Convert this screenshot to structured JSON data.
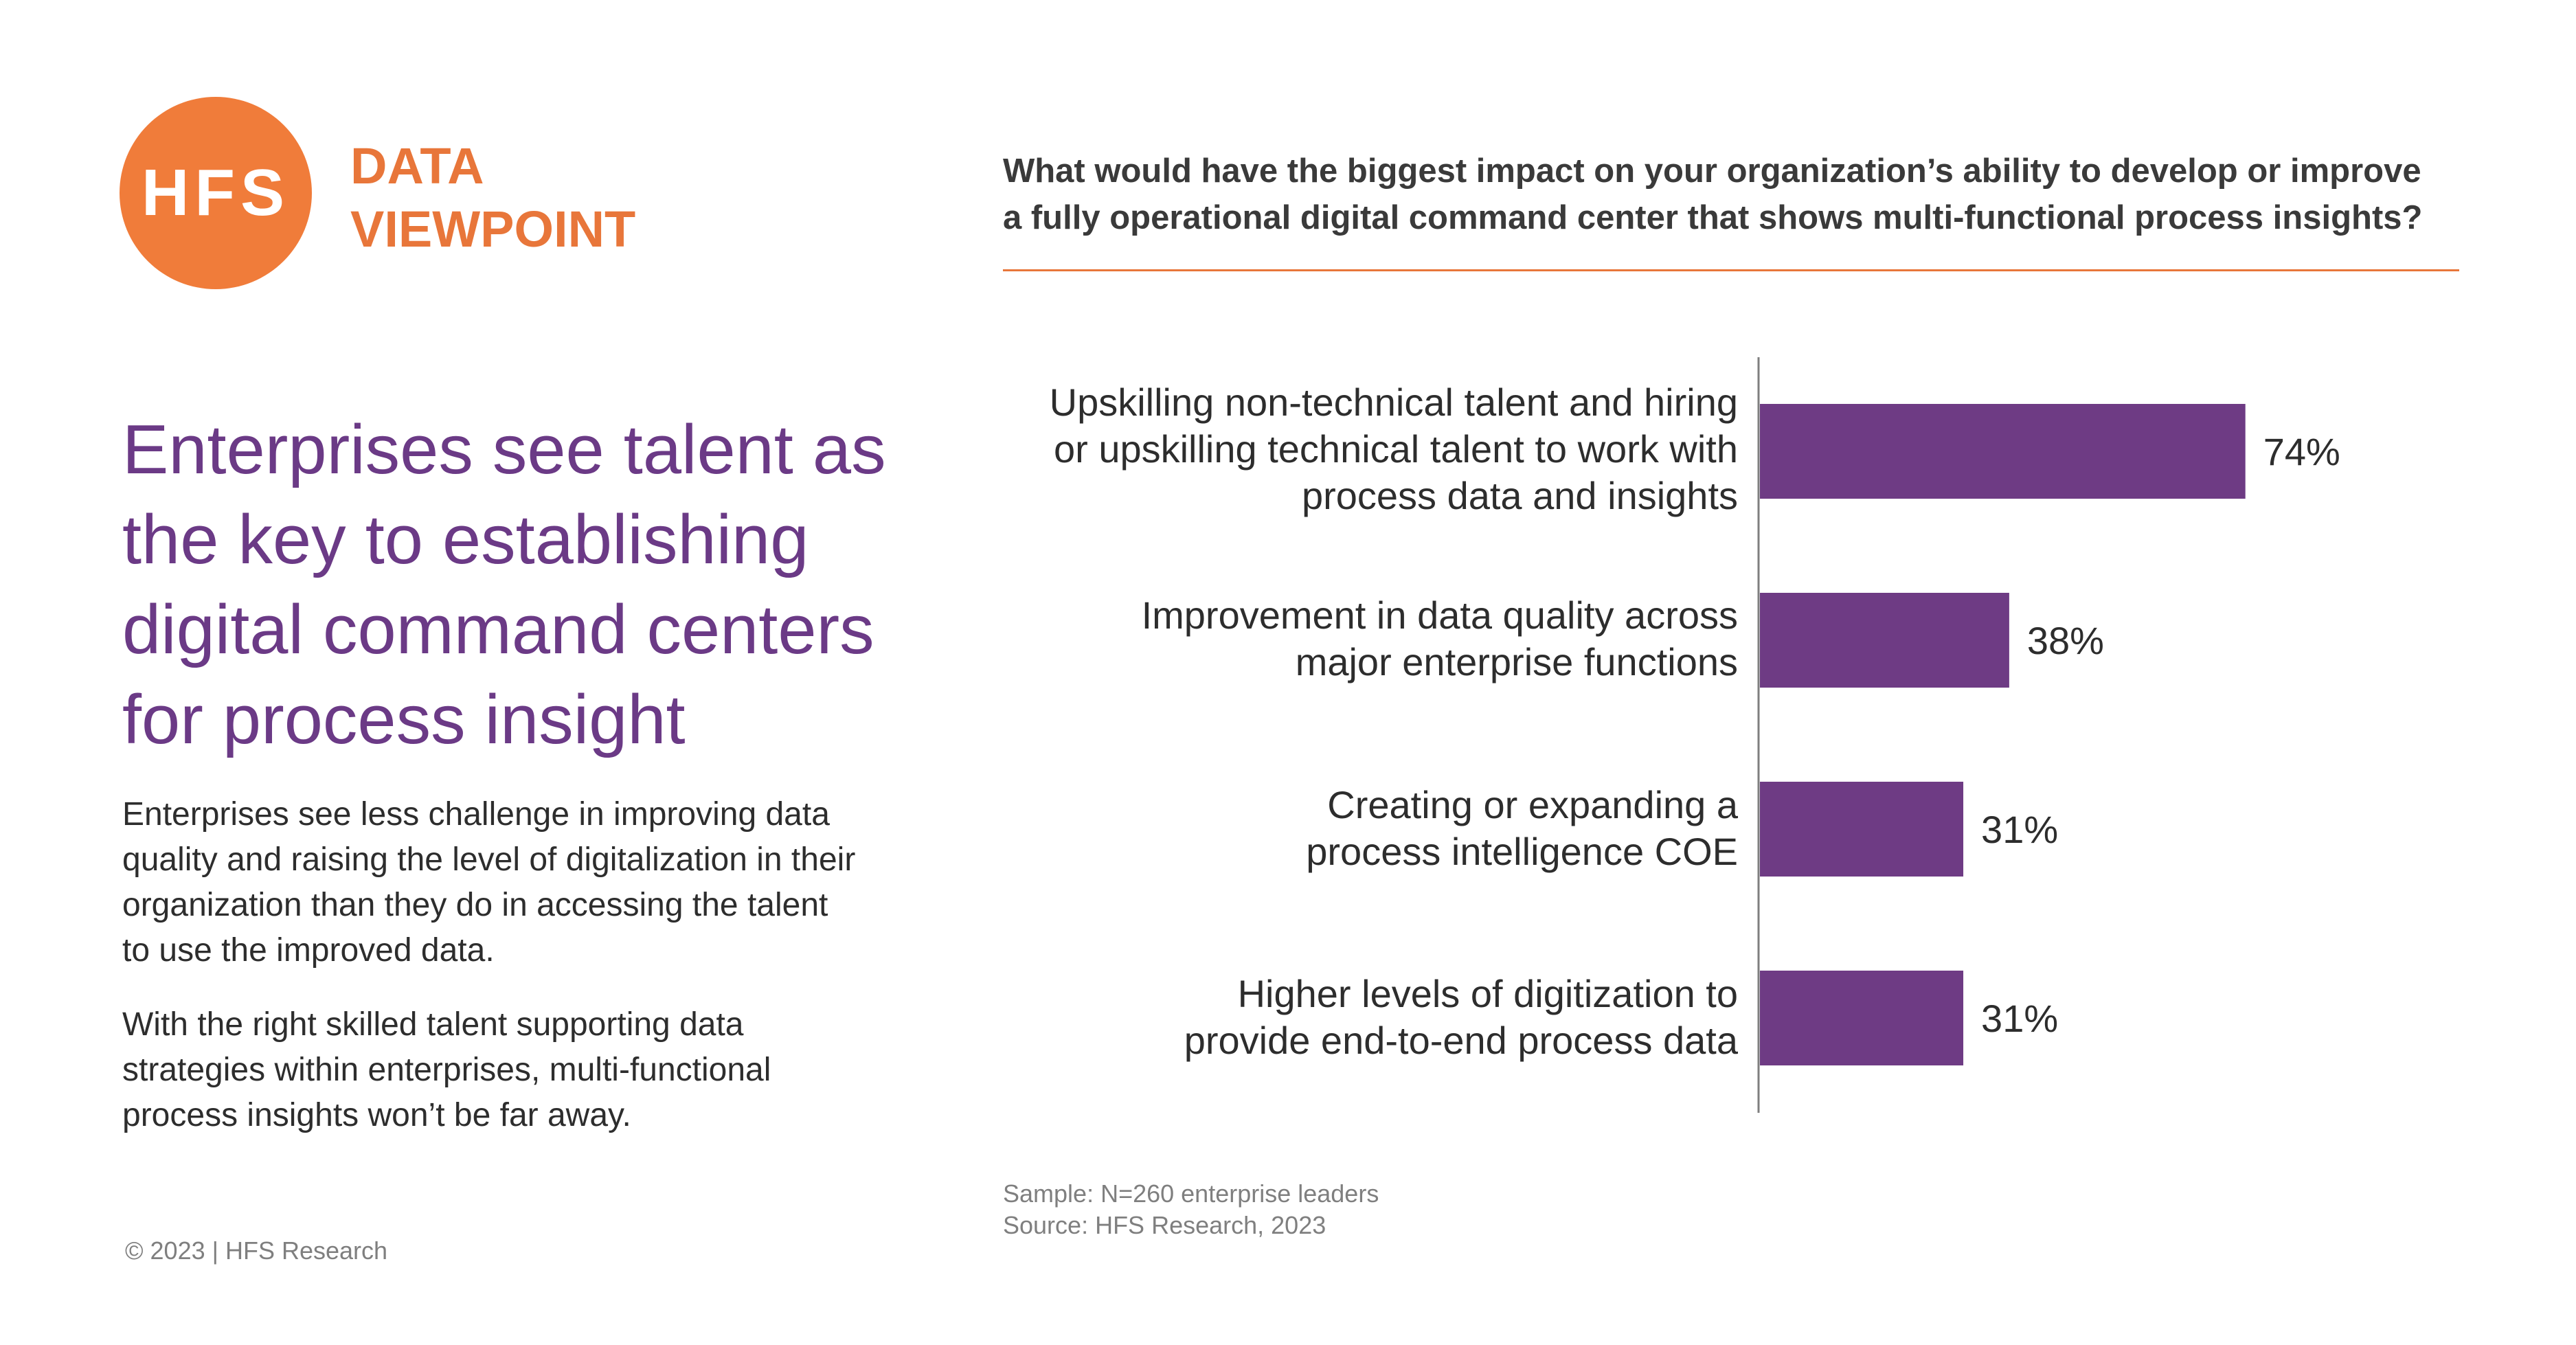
{
  "logo": {
    "text": "HFS"
  },
  "brand": {
    "line1": "DATA",
    "line2": "VIEWPOINT"
  },
  "headline": {
    "lines": [
      "Enterprises see talent as",
      "the key to establishing",
      "digital command centers",
      "for process insight"
    ]
  },
  "body": {
    "paragraph1": [
      "Enterprises see less challenge in improving data",
      "quality and raising the level of digitalization in their",
      "organization than they do in accessing the talent",
      "to use the improved data."
    ],
    "paragraph2": [
      "With the right skilled talent supporting data",
      "strategies within enterprises, multi-functional",
      "process insights won’t be far away."
    ]
  },
  "question": {
    "lines": [
      "What would have the biggest impact on your organization’s ability to develop or improve",
      "a fully operational digital command center that shows multi-functional process insights?"
    ]
  },
  "chart_data": {
    "type": "bar",
    "orientation": "horizontal",
    "categories": [
      "Upskilling non-technical talent and hiring or upskilling technical talent to work with process data and insights",
      "Improvement in data quality across major enterprise functions",
      "Creating or expanding a process intelligence COE",
      "Higher levels of digitization to provide end-to-end process data"
    ],
    "category_lines": [
      [
        "Upskilling non-technical talent and hiring",
        "or upskilling  technical talent to work with",
        "process data and insights"
      ],
      [
        "Improvement in data quality across",
        "major enterprise functions"
      ],
      [
        "Creating or expanding a",
        "process intelligence COE"
      ],
      [
        "Higher levels of digitization to",
        "provide end-to-end process data"
      ]
    ],
    "values": [
      74,
      38,
      31,
      31
    ],
    "data_labels": [
      "74%",
      "38%",
      "31%",
      "31%"
    ],
    "unit": "%",
    "xlim": [
      0,
      100
    ],
    "grid": false,
    "legend": "none",
    "bar_color": "#6E3B84",
    "axis_color": "#7f7f7f"
  },
  "footer": {
    "sample": "Sample: N=260 enterprise leaders",
    "source": "Source: HFS Research, 2023",
    "copyright": "© 2023 | HFS Research"
  },
  "colors": {
    "brand_orange": "#F07C3A",
    "headline_purple": "#6B3A86",
    "bar_purple": "#6E3B84"
  }
}
